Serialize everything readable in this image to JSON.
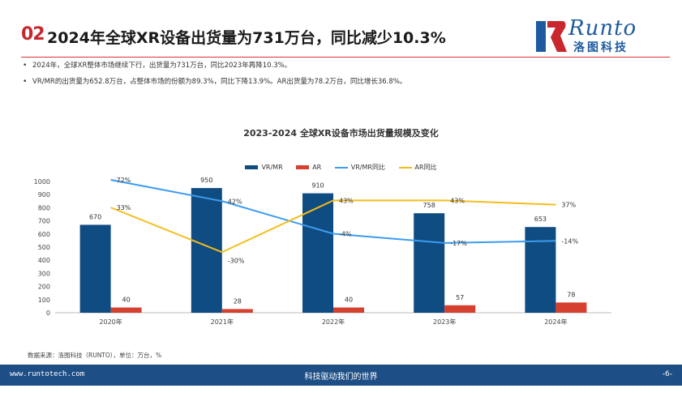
{
  "header": {
    "slide_number": "02",
    "title": "2024年全球XR设备出货量为731万台，同比减少10.3%",
    "logo_text": "Runto",
    "logo_cn": "洛图科技"
  },
  "bullets": [
    "2024年，全球XR整体市场继续下行，出货量为731万台，同比2023年再降10.3%。",
    "VR/MR的出货量为652.8万台，占整体市场的份额为89.3%，同比下降13.9%。AR出货量为78.2万台，同比增长36.8%。"
  ],
  "chart_data": {
    "type": "bar",
    "title": "2023-2024 全球XR设备市场出货量规模及变化",
    "categories": [
      "2020年",
      "2021年",
      "2022年",
      "2023年",
      "2024年"
    ],
    "ylim": [
      0,
      1000
    ],
    "yticks": [
      0,
      100,
      200,
      300,
      400,
      500,
      600,
      700,
      800,
      900,
      1000
    ],
    "legend_position": "top-center",
    "series": [
      {
        "name": "VR/MR",
        "kind": "bar",
        "color": "#0f4c81",
        "values": [
          670,
          950,
          910,
          758,
          653
        ],
        "labels": [
          "670",
          "950",
          "910",
          "758",
          "653"
        ]
      },
      {
        "name": "AR",
        "kind": "bar",
        "color": "#d6402f",
        "values": [
          40,
          28,
          40,
          57,
          78
        ],
        "labels": [
          "40",
          "28",
          "40",
          "57",
          "78"
        ]
      },
      {
        "name": "VR/MR同比",
        "kind": "line",
        "color": "#3b9cf0",
        "values": [
          72,
          42,
          -4,
          -17,
          -14
        ],
        "labels": [
          "72%",
          "42%",
          "-4%",
          "-17%",
          "-14%"
        ]
      },
      {
        "name": "AR同比",
        "kind": "line",
        "color": "#f5bd1c",
        "values": [
          33,
          -30,
          43,
          43,
          37
        ],
        "labels": [
          "33%",
          "-30%",
          "43%",
          "43%",
          "37%"
        ]
      }
    ]
  },
  "source": "数据来源：洛图科技（RUNTO），单位：万台，%",
  "footer": {
    "url": "www.runtotech.com",
    "slogan": "科技驱动我们的世界",
    "page": "-6-"
  }
}
